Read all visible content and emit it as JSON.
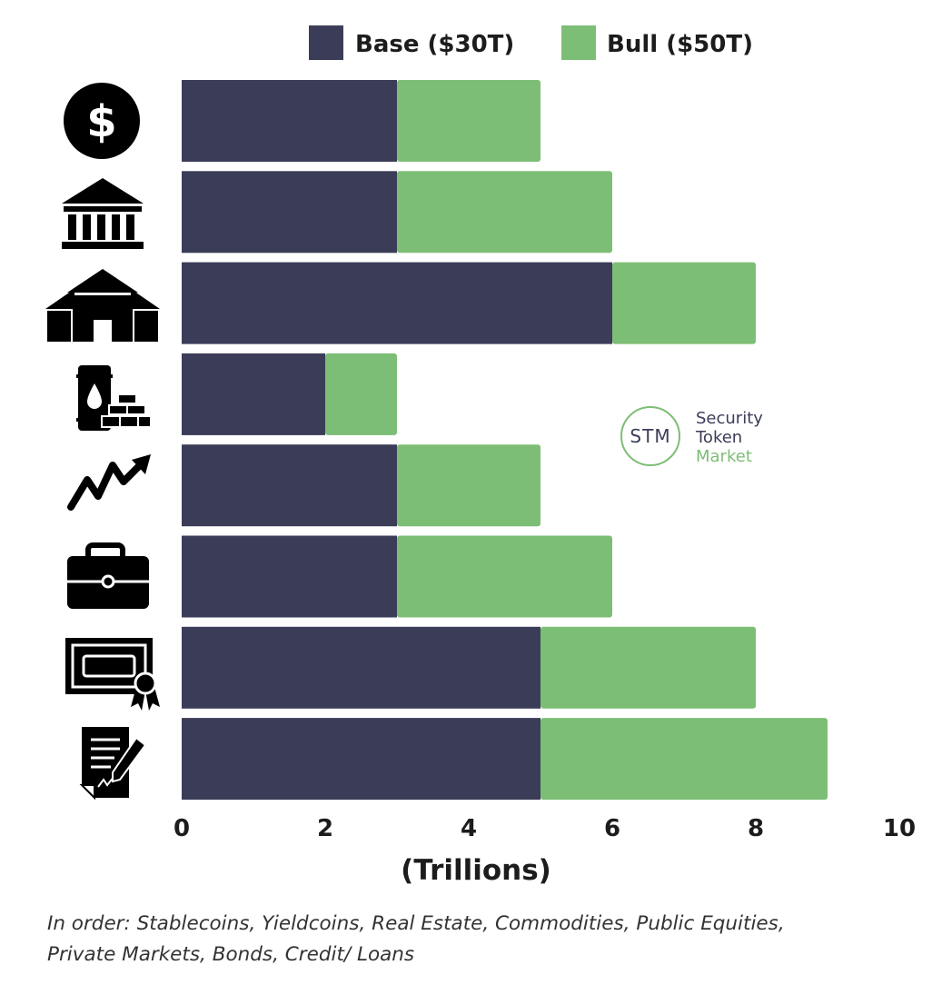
{
  "chart_data": {
    "type": "bar",
    "orientation": "horizontal",
    "stacked": true,
    "categories": [
      "Stablecoins",
      "Yieldcoins",
      "Real Estate",
      "Commodities",
      "Public Equities",
      "Private Markets",
      "Bonds",
      "Credit/ Loans"
    ],
    "category_icons": [
      "dollar-coin-icon",
      "bank-icon",
      "real-estate-icon",
      "commodities-icon",
      "trend-arrow-icon",
      "briefcase-icon",
      "certificate-icon",
      "contract-icon"
    ],
    "series": [
      {
        "name": "Base ($30T)",
        "color": "#3b3d58",
        "values": [
          3,
          3,
          6,
          2,
          3,
          3,
          5,
          5
        ]
      },
      {
        "name": "Bull ($50T)",
        "color": "#7dbe76",
        "values": [
          2,
          3,
          2,
          1,
          2,
          3,
          3,
          4
        ]
      }
    ],
    "xlim": [
      0,
      10
    ],
    "xticks": [
      "0",
      "2",
      "4",
      "6",
      "8",
      "10"
    ],
    "xlabel": "(Trillions)",
    "legend_position": "top",
    "grid": false
  },
  "logo": {
    "initials": "STM",
    "line1": "Security",
    "line2": "Token",
    "line3": "Market"
  },
  "footnote": {
    "line1": "In order: Stablecoins, Yieldcoins, Real Estate, Commodities, Public Equities,",
    "line2": "Private Markets, Bonds, Credit/ Loans"
  }
}
